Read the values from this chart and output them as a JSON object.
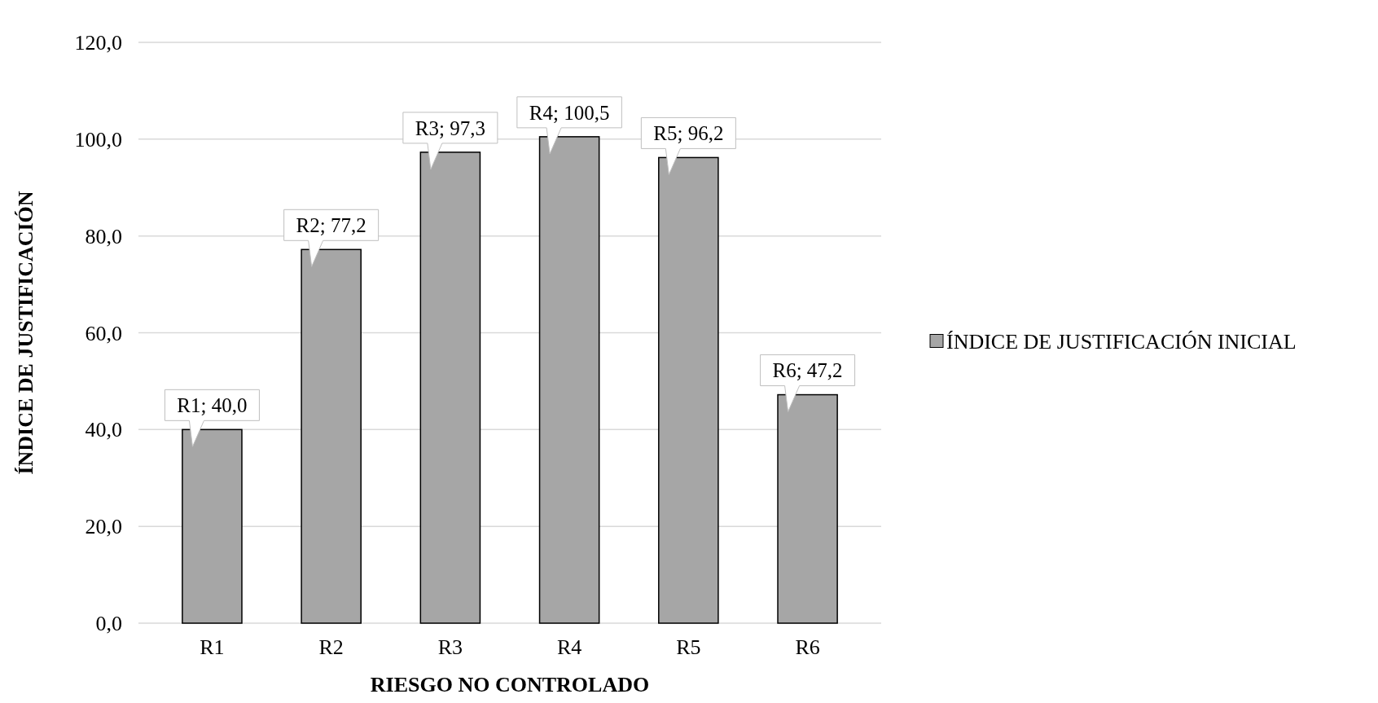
{
  "chart_data": {
    "type": "bar",
    "xlabel": "RIESGO NO CONTROLADO",
    "ylabel": "ÍNDICE DE JUSTIFICACIÓN",
    "categories": [
      "R1",
      "R2",
      "R3",
      "R4",
      "R5",
      "R6"
    ],
    "series": [
      {
        "name": "ÍNDICE DE JUSTIFICACIÓN INICIAL",
        "color": "#a6a6a6",
        "values": [
          40.0,
          77.2,
          97.3,
          100.5,
          96.2,
          47.2
        ],
        "value_labels": [
          "R1; 40,0",
          "R2; 77,2",
          "R3; 97,3",
          "R4; 100,5",
          "R5; 96,2",
          "R6; 47,2"
        ]
      }
    ],
    "ylim": [
      0,
      120
    ],
    "yticks": [
      {
        "value": 0,
        "label": "0,0"
      },
      {
        "value": 20,
        "label": "20,0"
      },
      {
        "value": 40,
        "label": "40,0"
      },
      {
        "value": 60,
        "label": "60,0"
      },
      {
        "value": 80,
        "label": "80,0"
      },
      {
        "value": 100,
        "label": "100,0"
      },
      {
        "value": 120,
        "label": "120,0"
      }
    ],
    "grid": "y",
    "legend": "right"
  }
}
